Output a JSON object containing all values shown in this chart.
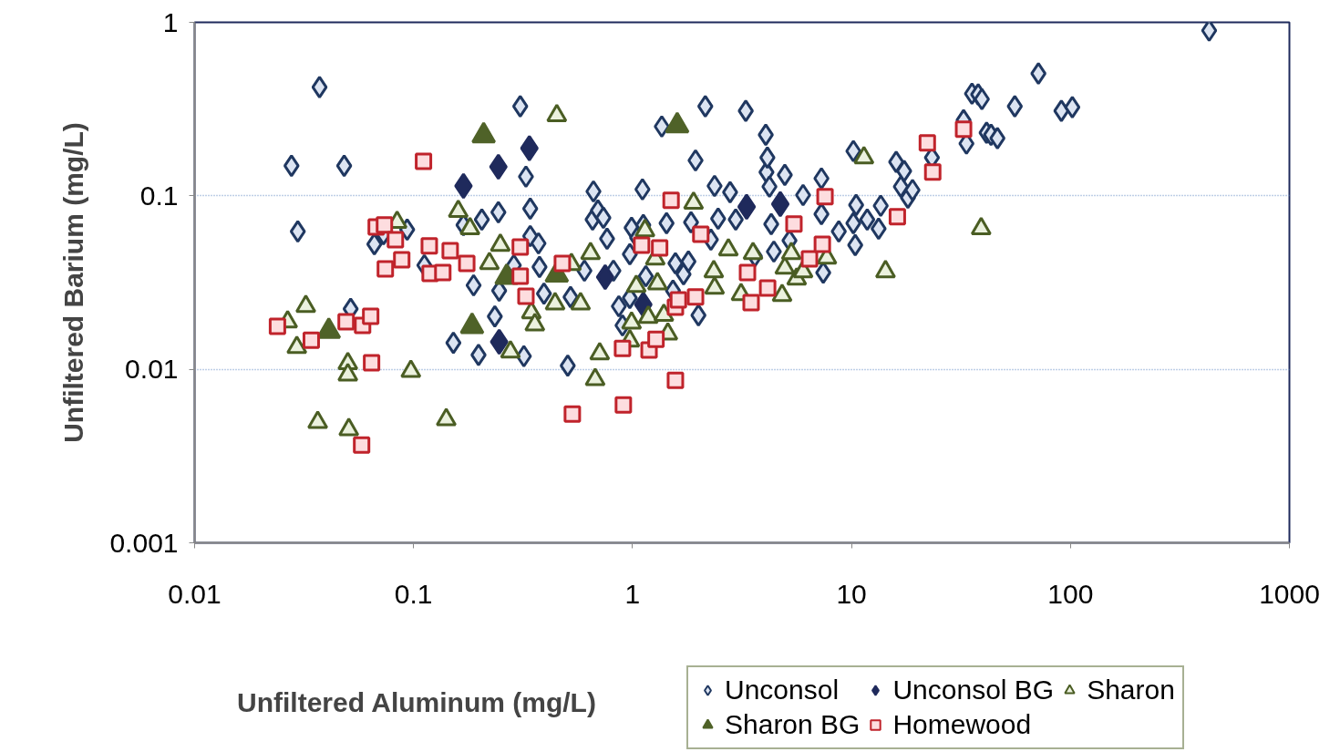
{
  "chart_data": {
    "type": "scatter",
    "xlabel": "Unfiltered Aluminum (mg/L)",
    "ylabel": "Unfiltered Barium (mg/L)",
    "log": "xy",
    "grid": "y",
    "legend": "bottom right",
    "xlim": [
      0.01,
      1000
    ],
    "ylim": [
      0.001,
      1
    ],
    "xticks": [
      0.01,
      0.1,
      1,
      10,
      100,
      1000
    ],
    "yticks": [
      0.001,
      0.01,
      0.1,
      1
    ],
    "series": [
      {
        "name": "Unconsol",
        "marker": "diamond",
        "color": "#dce4f2",
        "x": [
          0.0277,
          0.0296,
          0.0372,
          0.0482,
          0.0516,
          0.0662,
          0.0729,
          0.0935,
          0.112,
          0.152,
          0.169,
          0.188,
          0.198,
          0.205,
          0.235,
          0.244,
          0.246,
          0.287,
          0.307,
          0.319,
          0.326,
          0.341,
          0.341,
          0.372,
          0.376,
          0.394,
          0.506,
          0.521,
          0.603,
          0.663,
          0.657,
          0.695,
          0.736,
          0.765,
          0.818,
          0.866,
          0.9,
          0.972,
          0.99,
          0.972,
          1.05,
          1.11,
          1.15,
          1.12,
          1.36,
          1.43,
          1.53,
          1.57,
          1.71,
          1.8,
          1.85,
          1.94,
          2.0,
          2.15,
          2.28,
          2.37,
          2.46,
          2.79,
          2.96,
          3.29,
          3.62,
          4.06,
          4.09,
          4.13,
          4.22,
          4.3,
          4.42,
          4.96,
          5.21,
          6.01,
          7.29,
          7.29,
          7.43,
          8.75,
          10.2,
          10.2,
          10.4,
          10.5,
          11.8,
          13.3,
          13.6,
          16.0,
          16.8,
          17.4,
          18.1,
          19.0,
          23.3,
          32.5,
          33.5,
          35.5,
          37.9,
          41.4,
          43.4,
          46.4,
          55.7,
          71.4,
          90.9,
          102,
          430,
          39.4
        ],
        "values": [
          0.149,
          0.0623,
          0.423,
          0.149,
          0.0223,
          0.0526,
          0.0601,
          0.0639,
          0.0398,
          0.0142,
          0.0679,
          0.0305,
          0.0121,
          0.073,
          0.0202,
          0.0804,
          0.0284,
          0.0398,
          0.328,
          0.0119,
          0.129,
          0.0844,
          0.0586,
          0.0532,
          0.0389,
          0.0273,
          0.0105,
          0.0261,
          0.037,
          0.106,
          0.073,
          0.0824,
          0.0748,
          0.0566,
          0.037,
          0.0231,
          0.0179,
          0.0461,
          0.0655,
          0.0258,
          0.0573,
          0.109,
          0.0344,
          0.0679,
          0.251,
          0.0695,
          0.0284,
          0.0408,
          0.0353,
          0.0418,
          0.0704,
          0.16,
          0.0205,
          0.328,
          0.0559,
          0.114,
          0.0739,
          0.105,
          0.073,
          0.309,
          0.0449,
          0.225,
          0.137,
          0.166,
          0.113,
          0.0687,
          0.0477,
          0.132,
          0.0552,
          0.101,
          0.126,
          0.0785,
          0.0361,
          0.0623,
          0.181,
          0.0695,
          0.052,
          0.0886,
          0.073,
          0.0647,
          0.0876,
          0.157,
          0.113,
          0.139,
          0.0976,
          0.108,
          0.166,
          0.273,
          0.2,
          0.388,
          0.384,
          0.231,
          0.225,
          0.215,
          0.328,
          0.507,
          0.309,
          0.324,
          0.897,
          0.361
        ]
      },
      {
        "name": "Unconsol BG",
        "marker": "diamond",
        "color": "#1f2a5c",
        "x": [
          0.169,
          0.244,
          0.338,
          0.246,
          0.75,
          1.12,
          3.32,
          4.73
        ],
        "values": [
          0.114,
          0.147,
          0.188,
          0.0144,
          0.034,
          0.0236,
          0.0865,
          0.0897
        ]
      },
      {
        "name": "Sharon",
        "marker": "triangle",
        "color": "#ebf1de",
        "x": [
          0.0266,
          0.0322,
          0.0293,
          0.0365,
          0.0501,
          0.0501,
          0.0506,
          0.0841,
          0.0972,
          0.141,
          0.16,
          0.181,
          0.249,
          0.222,
          0.277,
          0.345,
          0.358,
          0.451,
          0.443,
          0.526,
          0.579,
          0.643,
          0.675,
          0.708,
          0.972,
          0.99,
          1.04,
          1.14,
          1.27,
          1.3,
          1.18,
          1.39,
          1.45,
          1.9,
          2.35,
          2.37,
          2.74,
          3.13,
          3.55,
          4.82,
          4.96,
          5.31,
          5.62,
          6.01,
          7.72,
          11.4,
          14.3,
          39.1
        ],
        "values": [
          0.0188,
          0.0231,
          0.0134,
          0.00495,
          0.0108,
          0.0093,
          0.0045,
          0.0704,
          0.00976,
          0.00514,
          0.0814,
          0.0647,
          0.052,
          0.0408,
          0.0126,
          0.0212,
          0.0181,
          0.29,
          0.0239,
          0.0403,
          0.0239,
          0.0466,
          0.00875,
          0.0123,
          0.0146,
          0.0185,
          0.0301,
          0.0631,
          0.0433,
          0.0312,
          0.02,
          0.0205,
          0.016,
          0.0908,
          0.0366,
          0.0294,
          0.0489,
          0.027,
          0.0466,
          0.0267,
          0.0384,
          0.0466,
          0.0332,
          0.0366,
          0.0439,
          0.166,
          0.0366,
          0.0647
        ]
      },
      {
        "name": "Sharon BG",
        "marker": "triangle",
        "color": "#4f6228",
        "x": [
          0.209,
          1.6,
          0.041,
          0.185,
          0.266,
          0.451
        ],
        "values": [
          0.222,
          0.254,
          0.0166,
          0.0177,
          0.034,
          0.035
        ]
      },
      {
        "name": "Homewood",
        "marker": "square",
        "color": "#c0232b",
        "x": [
          0.0239,
          0.0341,
          0.0492,
          0.0585,
          0.0637,
          0.0643,
          0.0579,
          0.0675,
          0.0736,
          0.0826,
          0.0883,
          0.0743,
          0.111,
          0.118,
          0.119,
          0.136,
          0.147,
          0.175,
          0.307,
          0.307,
          0.326,
          0.478,
          0.531,
          0.9,
          0.908,
          1.1,
          1.19,
          1.28,
          1.33,
          1.5,
          1.57,
          1.62,
          1.57,
          1.94,
          2.05,
          3.35,
          3.48,
          4.14,
          5.46,
          6.43,
          7.36,
          7.57,
          16.2,
          22.2,
          23.5,
          32.5
        ],
        "values": [
          0.0177,
          0.0147,
          0.0188,
          0.0179,
          0.0202,
          0.0109,
          0.00366,
          0.0662,
          0.0679,
          0.0559,
          0.0428,
          0.0379,
          0.158,
          0.0514,
          0.0357,
          0.0361,
          0.0483,
          0.0408,
          0.0507,
          0.0344,
          0.0264,
          0.0408,
          0.00552,
          0.0132,
          0.00624,
          0.052,
          0.0129,
          0.0149,
          0.0501,
          0.0941,
          0.0228,
          0.0251,
          0.00865,
          0.0261,
          0.0601,
          0.0361,
          0.0242,
          0.0294,
          0.0687,
          0.0433,
          0.0526,
          0.0988,
          0.0757,
          0.202,
          0.137,
          0.242
        ]
      }
    ]
  }
}
